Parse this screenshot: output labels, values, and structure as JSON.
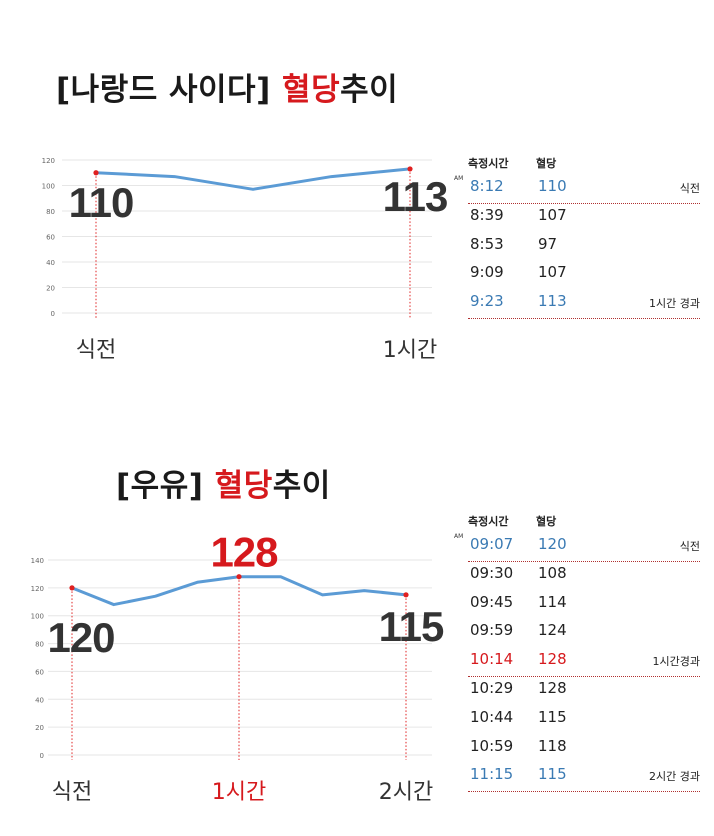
{
  "chart1": {
    "title_main": "[나랑드 사이다]",
    "title_red": "혈당",
    "title_tail": "추이",
    "callout_start": "110",
    "callout_end": "113",
    "label_start": "식전",
    "label_end": "1시간"
  },
  "chart2": {
    "title_main": "[우유]",
    "title_red": "혈당",
    "title_tail": "추이",
    "callout_start": "120",
    "callout_peak": "128",
    "callout_end": "115",
    "label_start": "식전",
    "label_mid": "1시간",
    "label_end": "2시간"
  },
  "table1": {
    "header_time": "측정시간",
    "header_value": "혈당",
    "am": "AM",
    "rows": [
      {
        "time": "8:12",
        "value": "110",
        "note": "식전"
      },
      {
        "time": "8:39",
        "value": "107",
        "note": ""
      },
      {
        "time": "8:53",
        "value": "97",
        "note": ""
      },
      {
        "time": "9:09",
        "value": "107",
        "note": ""
      },
      {
        "time": "9:23",
        "value": "113",
        "note": "1시간 경과"
      }
    ]
  },
  "table2": {
    "header_time": "측정시간",
    "header_value": "혈당",
    "am": "AM",
    "rows": [
      {
        "time": "09:07",
        "value": "120",
        "note": "식전"
      },
      {
        "time": "09:30",
        "value": "108",
        "note": ""
      },
      {
        "time": "09:45",
        "value": "114",
        "note": ""
      },
      {
        "time": "09:59",
        "value": "124",
        "note": ""
      },
      {
        "time": "10:14",
        "value": "128",
        "note": "1시간경과"
      },
      {
        "time": "10:29",
        "value": "128",
        "note": ""
      },
      {
        "time": "10:44",
        "value": "115",
        "note": ""
      },
      {
        "time": "10:59",
        "value": "118",
        "note": ""
      },
      {
        "time": "11:15",
        "value": "115",
        "note": "2시간 경과"
      }
    ]
  },
  "colors": {
    "line": "#5b9bd5",
    "marker": "#e02020",
    "grid": "#e6e6e6",
    "highlight_blue": "#3a7ab3",
    "highlight_red": "#d6191d"
  },
  "chart_data": [
    {
      "type": "line",
      "title": "[나랑드 사이다] 혈당추이",
      "x": [
        "8:12",
        "8:39",
        "8:53",
        "9:09",
        "9:23"
      ],
      "values": [
        110,
        107,
        97,
        107,
        113
      ],
      "ylim": [
        0,
        120
      ],
      "yticks": [
        0,
        20,
        40,
        60,
        80,
        100,
        120
      ],
      "grid": true
    },
    {
      "type": "line",
      "title": "[우유] 혈당추이",
      "x": [
        "09:07",
        "09:30",
        "09:45",
        "09:59",
        "10:14",
        "10:29",
        "10:44",
        "10:59",
        "11:15"
      ],
      "values": [
        120,
        108,
        114,
        124,
        128,
        128,
        115,
        118,
        115
      ],
      "ylim": [
        0,
        140
      ],
      "yticks": [
        0,
        20,
        40,
        60,
        80,
        100,
        120,
        140
      ],
      "grid": true
    }
  ]
}
